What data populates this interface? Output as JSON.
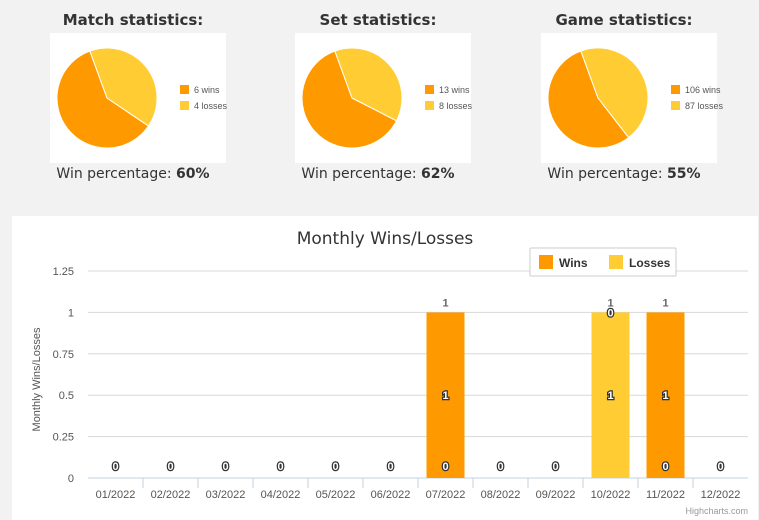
{
  "stats": [
    {
      "title": "Match statistics:",
      "wins_label": "6 wins",
      "losses_label": "4 losses",
      "pct_label": "Win percentage: ",
      "pct_value": "60%"
    },
    {
      "title": "Set statistics:",
      "wins_label": "13 wins",
      "losses_label": "8 losses",
      "pct_label": "Win percentage: ",
      "pct_value": "62%"
    },
    {
      "title": "Game statistics:",
      "wins_label": "106 wins",
      "losses_label": "87 losses",
      "pct_label": "Win percentage: ",
      "pct_value": "55%"
    }
  ],
  "colors": {
    "wins": "#ff9900",
    "losses": "#ffcc33"
  },
  "credits": "Highcharts.com",
  "chart_data": [
    {
      "type": "pie",
      "title": "Match statistics:",
      "categories": [
        "6 wins",
        "4 losses"
      ],
      "values": [
        6,
        4
      ]
    },
    {
      "type": "pie",
      "title": "Set statistics:",
      "categories": [
        "13 wins",
        "8 losses"
      ],
      "values": [
        13,
        8
      ]
    },
    {
      "type": "pie",
      "title": "Game statistics:",
      "categories": [
        "106 wins",
        "87 losses"
      ],
      "values": [
        106,
        87
      ]
    },
    {
      "type": "bar",
      "title": "Monthly Wins/Losses",
      "xlabel": "",
      "ylabel": "Monthly Wins/Losses",
      "categories": [
        "01/2022",
        "02/2022",
        "03/2022",
        "04/2022",
        "05/2022",
        "06/2022",
        "07/2022",
        "08/2022",
        "09/2022",
        "10/2022",
        "11/2022",
        "12/2022"
      ],
      "series": [
        {
          "name": "Wins",
          "values": [
            0,
            0,
            0,
            0,
            0,
            0,
            1,
            0,
            0,
            0,
            1,
            0
          ]
        },
        {
          "name": "Losses",
          "values": [
            0,
            0,
            0,
            0,
            0,
            0,
            0,
            0,
            0,
            1,
            0,
            0
          ]
        }
      ],
      "stacked": true,
      "ylim": [
        0,
        1.25
      ],
      "yticks": [
        "0",
        "0.25",
        "0.5",
        "0.75",
        "1",
        "1.25"
      ],
      "grid": true,
      "legend": "top-right"
    }
  ]
}
